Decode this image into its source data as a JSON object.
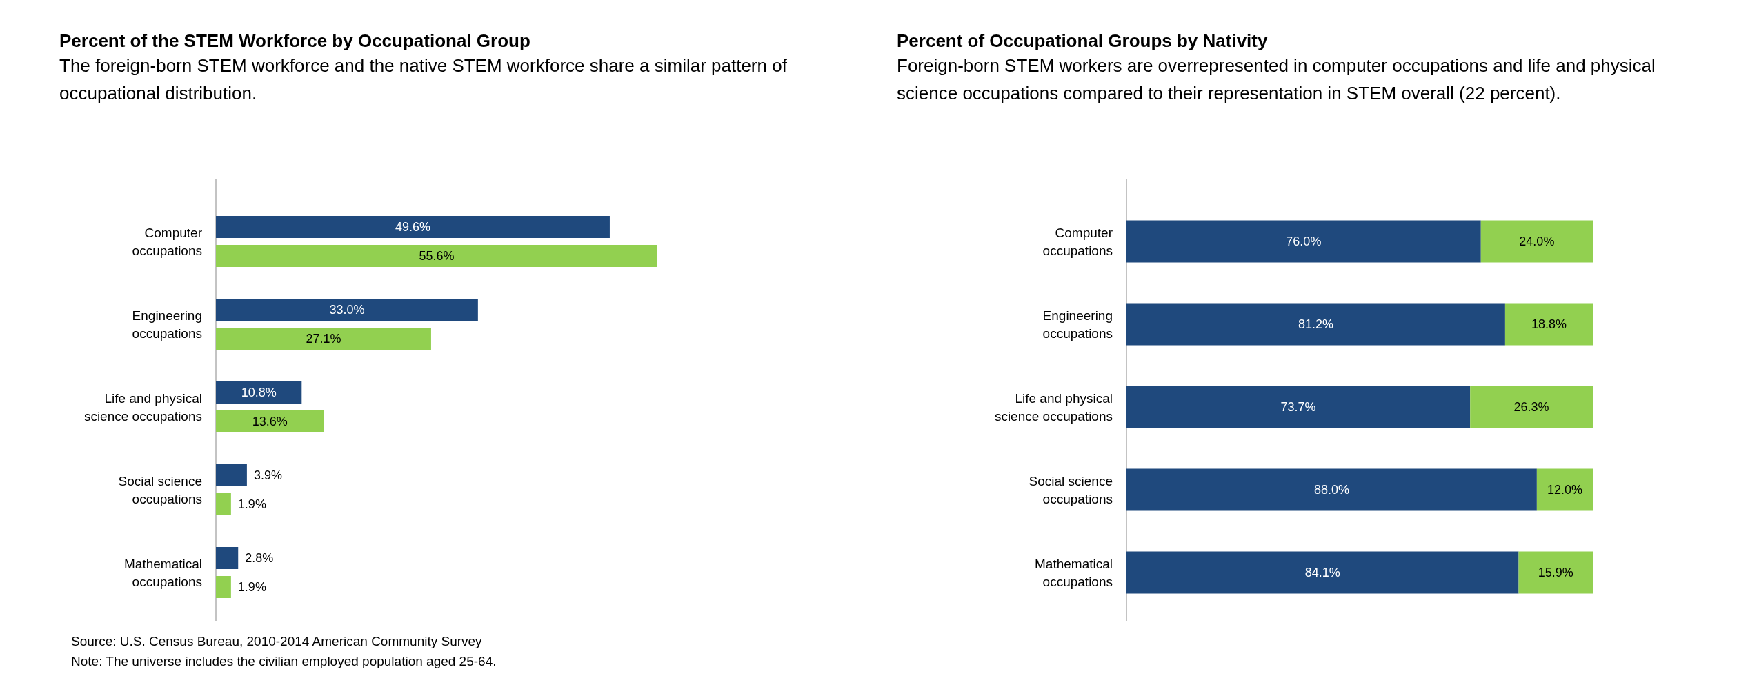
{
  "chart_data": [
    {
      "type": "bar",
      "orientation": "horizontal",
      "title": "Percent of the STEM Workforce by Occupational Group",
      "subtitle": "The foreign-born STEM workforce and the native STEM workforce share a similar pattern of occupational distribution.",
      "categories": [
        "Computer\noccupations",
        "Engineering\noccupations",
        "Life and physical\nscience occupations",
        "Social science\noccupations",
        "Mathematical\noccupations"
      ],
      "series": [
        {
          "color": "#1f497d",
          "values": [
            49.6,
            33.0,
            10.8,
            3.9,
            2.8
          ],
          "value_labels": [
            "49.6%",
            "33.0%",
            "10.8%",
            "3.9%",
            "2.8%"
          ]
        },
        {
          "color": "#92d050",
          "values": [
            55.6,
            27.1,
            13.6,
            1.9,
            1.9
          ],
          "value_labels": [
            "55.6%",
            "27.1%",
            "13.6%",
            "1.9%",
            "1.9%"
          ]
        }
      ],
      "annotations": [
        "Source: U.S. Census Bureau, 2010-2014 American Community Survey",
        "Note: The universe includes the civilian employed population aged 25-64."
      ]
    },
    {
      "type": "bar",
      "orientation": "horizontal",
      "stacked": true,
      "title": "Percent of Occupational Groups by Nativity",
      "subtitle": "Foreign-born STEM workers are overrepresented in computer occupations and life and physical science occupations compared to their representation in STEM overall (22 percent).",
      "categories": [
        "Computer\noccupations",
        "Engineering\noccupations",
        "Life and physical\nscience occupations",
        "Social science\noccupations",
        "Mathematical\noccupations"
      ],
      "series": [
        {
          "color": "#1f497d",
          "values": [
            76.0,
            81.2,
            73.7,
            88.0,
            84.1
          ],
          "value_labels": [
            "76.0%",
            "81.2%",
            "73.7%",
            "88.0%",
            "84.1%"
          ]
        },
        {
          "color": "#92d050",
          "values": [
            24.0,
            18.8,
            26.3,
            12.0,
            15.9
          ],
          "value_labels": [
            "24.0%",
            "18.8%",
            "26.3%",
            "12.0%",
            "15.9%"
          ]
        }
      ]
    }
  ]
}
